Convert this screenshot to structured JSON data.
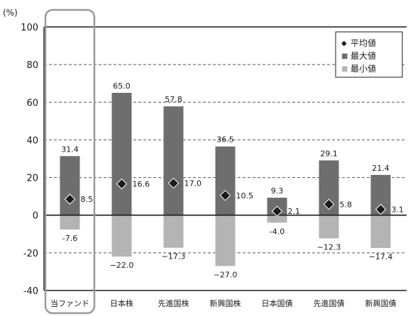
{
  "chart_data": {
    "type": "bar",
    "unit": "(%)",
    "categories": [
      "当ファンド",
      "日本株",
      "先進国株",
      "新興国株",
      "日本国債",
      "先進国債",
      "新興国債"
    ],
    "ylim": [
      -40,
      100
    ],
    "yticks": [
      -40,
      -20,
      0,
      20,
      40,
      60,
      80,
      100
    ],
    "series": [
      {
        "name": "平均値",
        "marker": "◆",
        "values": [
          8.5,
          16.6,
          17.0,
          10.5,
          2.1,
          5.8,
          3.1
        ],
        "labels": [
          "8.5",
          "16.6",
          "17.0",
          "10.5",
          "2.1",
          "5.8",
          "3.1"
        ]
      },
      {
        "name": "最大値",
        "marker": "■",
        "values": [
          31.4,
          65.0,
          57.8,
          36.5,
          9.3,
          29.1,
          21.4
        ],
        "labels": [
          "31.4",
          "65.0",
          "57.8",
          "36.5",
          "9.3",
          "29.1",
          "21.4"
        ]
      },
      {
        "name": "最小値",
        "marker": "■",
        "values": [
          -7.6,
          -22.0,
          -17.3,
          -27.0,
          -4.0,
          -12.3,
          -17.4
        ],
        "labels": [
          "-7.6",
          "−22.0",
          "−17.3",
          "−27.0",
          "-4.0",
          "−12.3",
          "−17.4"
        ]
      }
    ],
    "colors": {
      "max": "#6e6e6e",
      "min": "#b4b4b4",
      "avg": "#1a1a1a",
      "highlight": "#9a9a9a"
    },
    "grid": "dashed horizontal",
    "legend_position": "top-right",
    "highlighted_category": "当ファンド"
  }
}
